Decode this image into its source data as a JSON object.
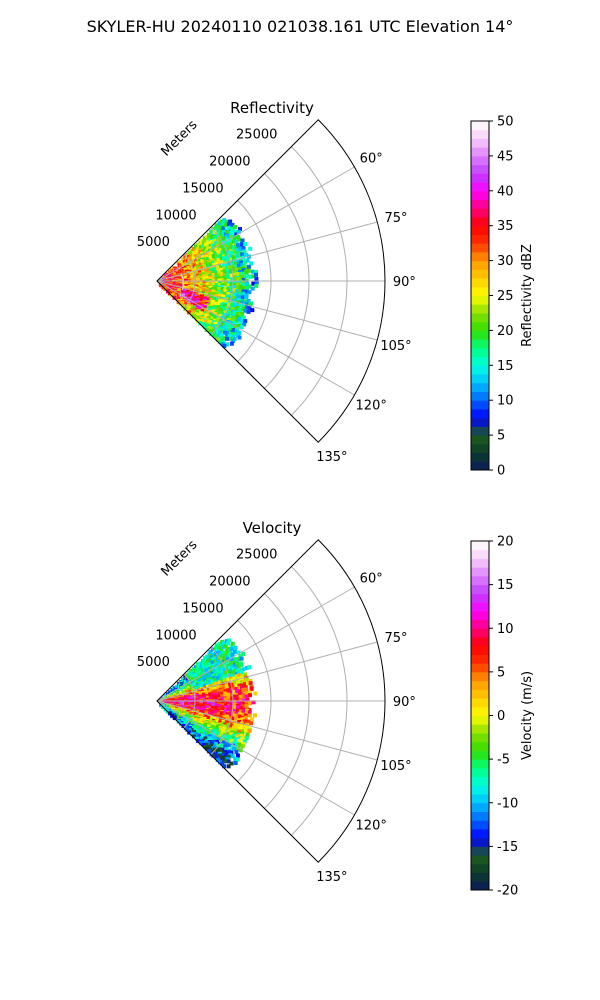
{
  "suptitle": "SKYLER-HU  20240110  021038.161 UTC Elevation 14°",
  "chart_data": [
    {
      "type": "heatmap",
      "projection": "polar-sector",
      "title": "Reflectivity",
      "radial_label": "Meters",
      "r_ticks": [
        "5000",
        "10000",
        "15000",
        "20000",
        "25000"
      ],
      "r_tick_values": [
        5000,
        10000,
        15000,
        20000,
        25000
      ],
      "r_max": 30000,
      "theta_range_deg": [
        45,
        135
      ],
      "theta_ticks": [
        "60°",
        "75°",
        "90°",
        "105°",
        "120°",
        "135°"
      ],
      "theta_tick_values": [
        60,
        75,
        90,
        105,
        120,
        135
      ],
      "data_range_m": [
        0,
        13000
      ],
      "grid": true,
      "colorbar": {
        "label": "Reflectivity dBZ",
        "min": 0,
        "max": 50,
        "ticks": [
          "0",
          "5",
          "10",
          "15",
          "20",
          "25",
          "30",
          "35",
          "40",
          "45",
          "50"
        ],
        "tick_values": [
          0,
          5,
          10,
          15,
          20,
          25,
          30,
          35,
          40,
          45,
          50
        ]
      }
    },
    {
      "type": "heatmap",
      "projection": "polar-sector",
      "title": "Velocity",
      "radial_label": "Meters",
      "r_ticks": [
        "5000",
        "10000",
        "15000",
        "20000",
        "25000"
      ],
      "r_tick_values": [
        5000,
        10000,
        15000,
        20000,
        25000
      ],
      "r_max": 30000,
      "theta_range_deg": [
        45,
        135
      ],
      "theta_ticks": [
        "60°",
        "75°",
        "90°",
        "105°",
        "120°",
        "135°"
      ],
      "theta_tick_values": [
        60,
        75,
        90,
        105,
        120,
        135
      ],
      "data_range_m": [
        0,
        13000
      ],
      "grid": true,
      "colorbar": {
        "label": "Velocity (m/s)",
        "min": -20,
        "max": 20,
        "ticks": [
          "-20",
          "-15",
          "-10",
          "-5",
          "0",
          "5",
          "10",
          "15",
          "20"
        ],
        "tick_values": [
          -20,
          -15,
          -10,
          -5,
          0,
          5,
          10,
          15,
          20
        ]
      }
    }
  ],
  "colors": {
    "axis": "#000000",
    "grid": "#b0b0b0",
    "colormap": [
      "#0a1a5a",
      "#0d3d2a",
      "#1f5e1f",
      "#0000ff",
      "#0066ff",
      "#00bfff",
      "#00ffe0",
      "#00ff80",
      "#33dd00",
      "#88e000",
      "#ffff00",
      "#ffcc00",
      "#ff9900",
      "#ff3300",
      "#ff0000",
      "#ff0080",
      "#ff00ff",
      "#c040ff",
      "#e080ff",
      "#f8d0f8",
      "#ffffff"
    ]
  }
}
